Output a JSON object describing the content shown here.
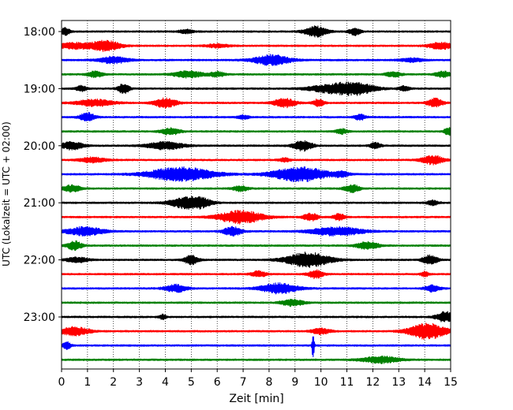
{
  "chart_data": {
    "type": "line",
    "xlabel": "Zeit  [min]",
    "ylabel": "UTC (Lokalzeit = UTC + 02:00)",
    "xlim": [
      0,
      15
    ],
    "x_ticks": [
      0,
      1,
      2,
      3,
      4,
      5,
      6,
      7,
      8,
      9,
      10,
      11,
      12,
      13,
      14,
      15
    ],
    "y_ticks": [
      "18:00",
      "19:00",
      "20:00",
      "21:00",
      "22:00",
      "23:00"
    ],
    "vertical_grid": "dotted",
    "trace_minutes_per_line": 15,
    "series": [
      {
        "line": "18:00",
        "color": "#000000",
        "bursts": [
          [
            0.15,
            0.12,
            0.5
          ],
          [
            4.8,
            0.2,
            0.25
          ],
          [
            9.8,
            0.3,
            0.7
          ],
          [
            11.3,
            0.15,
            0.5
          ]
        ]
      },
      {
        "line": "18:15",
        "color": "#ff0000",
        "bursts": [
          [
            0.5,
            0.5,
            0.4
          ],
          [
            1.7,
            0.4,
            0.7
          ],
          [
            6.0,
            0.3,
            0.25
          ],
          [
            14.6,
            0.3,
            0.5
          ]
        ]
      },
      {
        "line": "18:30",
        "color": "#0000ff",
        "bursts": [
          [
            2.0,
            0.4,
            0.45
          ],
          [
            8.1,
            0.5,
            0.7
          ],
          [
            13.5,
            0.3,
            0.25
          ]
        ]
      },
      {
        "line": "18:45",
        "color": "#008000",
        "bursts": [
          [
            1.3,
            0.2,
            0.4
          ],
          [
            4.9,
            0.4,
            0.45
          ],
          [
            6.0,
            0.2,
            0.35
          ],
          [
            12.8,
            0.2,
            0.35
          ],
          [
            14.7,
            0.2,
            0.4
          ]
        ]
      },
      {
        "line": "19:00",
        "color": "#000000",
        "bursts": [
          [
            0.75,
            0.15,
            0.35
          ],
          [
            2.4,
            0.15,
            0.7
          ],
          [
            10.4,
            0.6,
            0.55
          ],
          [
            11.4,
            0.5,
            0.75
          ],
          [
            13.2,
            0.15,
            0.35
          ]
        ]
      },
      {
        "line": "19:15",
        "color": "#ff0000",
        "bursts": [
          [
            1.3,
            0.5,
            0.45
          ],
          [
            4.0,
            0.3,
            0.65
          ],
          [
            8.6,
            0.3,
            0.6
          ],
          [
            9.9,
            0.15,
            0.5
          ],
          [
            14.4,
            0.2,
            0.6
          ]
        ]
      },
      {
        "line": "19:30",
        "color": "#0000ff",
        "bursts": [
          [
            1.0,
            0.2,
            0.6
          ],
          [
            7.0,
            0.15,
            0.25
          ],
          [
            11.5,
            0.15,
            0.4
          ]
        ]
      },
      {
        "line": "19:45",
        "color": "#008000",
        "bursts": [
          [
            4.2,
            0.25,
            0.5
          ],
          [
            10.8,
            0.15,
            0.35
          ],
          [
            14.9,
            0.1,
            0.6
          ]
        ]
      },
      {
        "line": "20:00",
        "color": "#000000",
        "bursts": [
          [
            0.4,
            0.3,
            0.55
          ],
          [
            4.0,
            0.5,
            0.5
          ],
          [
            9.3,
            0.25,
            0.7
          ],
          [
            12.1,
            0.15,
            0.4
          ]
        ]
      },
      {
        "line": "20:15",
        "color": "#ff0000",
        "bursts": [
          [
            1.2,
            0.35,
            0.35
          ],
          [
            8.6,
            0.15,
            0.25
          ],
          [
            14.3,
            0.3,
            0.6
          ]
        ]
      },
      {
        "line": "20:30",
        "color": "#0000ff",
        "bursts": [
          [
            4.6,
            0.9,
            0.95
          ],
          [
            9.2,
            0.75,
            1.0
          ],
          [
            10.8,
            0.2,
            0.3
          ]
        ]
      },
      {
        "line": "20:45",
        "color": "#008000",
        "bursts": [
          [
            0.4,
            0.25,
            0.45
          ],
          [
            6.9,
            0.2,
            0.35
          ],
          [
            11.2,
            0.2,
            0.55
          ]
        ]
      },
      {
        "line": "21:00",
        "color": "#000000",
        "bursts": [
          [
            4.8,
            0.45,
            0.75
          ],
          [
            5.4,
            0.3,
            0.45
          ],
          [
            14.3,
            0.15,
            0.35
          ]
        ]
      },
      {
        "line": "21:15",
        "color": "#ff0000",
        "bursts": [
          [
            6.9,
            0.6,
            0.9
          ],
          [
            9.6,
            0.2,
            0.5
          ],
          [
            10.7,
            0.15,
            0.45
          ]
        ]
      },
      {
        "line": "21:30",
        "color": "#0000ff",
        "bursts": [
          [
            0.9,
            0.5,
            0.6
          ],
          [
            6.6,
            0.25,
            0.6
          ],
          [
            10.6,
            0.7,
            0.6
          ]
        ]
      },
      {
        "line": "21:45",
        "color": "#008000",
        "bursts": [
          [
            0.5,
            0.2,
            0.6
          ],
          [
            11.8,
            0.3,
            0.5
          ]
        ]
      },
      {
        "line": "22:00",
        "color": "#000000",
        "bursts": [
          [
            0.6,
            0.3,
            0.35
          ],
          [
            5.0,
            0.2,
            0.6
          ],
          [
            9.5,
            0.6,
            1.0
          ],
          [
            14.2,
            0.2,
            0.65
          ]
        ]
      },
      {
        "line": "22:15",
        "color": "#ff0000",
        "bursts": [
          [
            7.6,
            0.2,
            0.4
          ],
          [
            9.8,
            0.2,
            0.55
          ],
          [
            14.0,
            0.1,
            0.35
          ]
        ]
      },
      {
        "line": "22:30",
        "color": "#0000ff",
        "bursts": [
          [
            4.4,
            0.3,
            0.5
          ],
          [
            8.4,
            0.5,
            0.7
          ],
          [
            14.3,
            0.2,
            0.45
          ]
        ]
      },
      {
        "line": "22:45",
        "color": "#008000",
        "bursts": [
          [
            8.9,
            0.3,
            0.45
          ]
        ]
      },
      {
        "line": "23:00",
        "color": "#000000",
        "bursts": [
          [
            3.9,
            0.1,
            0.3
          ],
          [
            14.8,
            0.25,
            0.7
          ]
        ]
      },
      {
        "line": "23:15",
        "color": "#ff0000",
        "bursts": [
          [
            0.5,
            0.4,
            0.6
          ],
          [
            10.0,
            0.25,
            0.4
          ],
          [
            14.1,
            0.5,
            1.1
          ]
        ]
      },
      {
        "line": "23:30",
        "color": "#0000ff",
        "bursts": [
          [
            0.2,
            0.1,
            0.6
          ],
          [
            9.7,
            0.03,
            2.2
          ]
        ]
      },
      {
        "line": "23:45",
        "color": "#008000",
        "bursts": [
          [
            12.3,
            0.5,
            0.45
          ]
        ]
      }
    ]
  }
}
